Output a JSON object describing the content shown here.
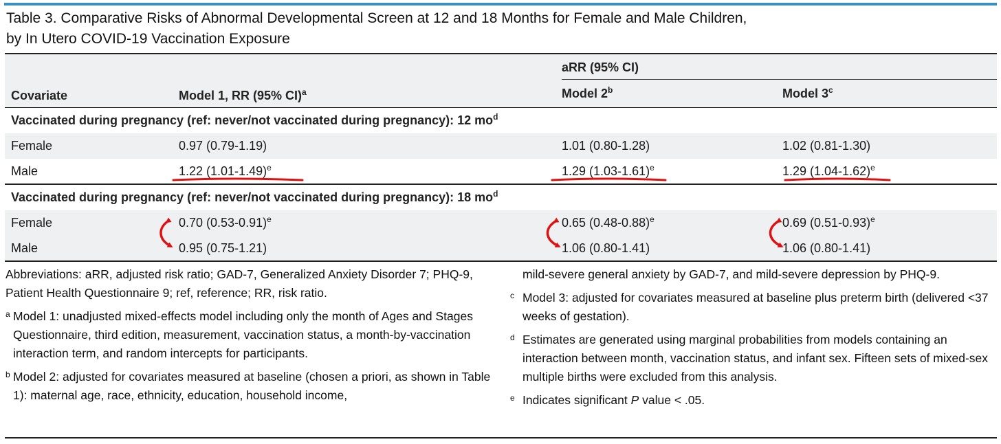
{
  "title_line1": "Table 3. Comparative Risks of Abnormal Developmental Screen at 12 and 18 Months for Female and Male Children,",
  "title_line2": "by In Utero COVID-19 Vaccination Exposure",
  "headers": {
    "covariate": "Covariate",
    "model1": "Model 1, RR (95% CI)",
    "model1_sup": "a",
    "arr_group": "aRR (95% CI)",
    "model2": "Model 2",
    "model2_sup": "b",
    "model3": "Model 3",
    "model3_sup": "c"
  },
  "sections": [
    {
      "label": "Vaccinated during pregnancy (ref: never/not vaccinated during pregnancy): 12 mo",
      "sup": "d",
      "rows": [
        {
          "covariate": "Female",
          "m1": "0.97 (0.79-1.19)",
          "m1_sup": "",
          "m2": "1.01 (0.80-1.28)",
          "m2_sup": "",
          "m3": "1.02 (0.81-1.30)",
          "m3_sup": ""
        },
        {
          "covariate": "Male",
          "m1": "1.22 (1.01-1.49)",
          "m1_sup": "e",
          "m2": "1.29 (1.03-1.61)",
          "m2_sup": "e",
          "m3": "1.29 (1.04-1.62)",
          "m3_sup": "e"
        }
      ]
    },
    {
      "label": "Vaccinated during pregnancy (ref: never/not vaccinated during pregnancy): 18 mo",
      "sup": "d",
      "rows": [
        {
          "covariate": "Female",
          "m1": "0.70 (0.53-0.91)",
          "m1_sup": "e",
          "m2": "0.65 (0.48-0.88)",
          "m2_sup": "e",
          "m3": "0.69 (0.51-0.93)",
          "m3_sup": "e"
        },
        {
          "covariate": "Male",
          "m1": "0.95 (0.75-1.21)",
          "m1_sup": "",
          "m2": "1.06 (0.80-1.41)",
          "m2_sup": "",
          "m3": "1.06 (0.80-1.41)",
          "m3_sup": ""
        }
      ]
    }
  ],
  "footnotes": {
    "abbreviations": "Abbreviations: aRR, adjusted risk ratio; GAD-7, Generalized Anxiety Disorder 7; PHQ-9, Patient Health Questionnaire 9; ref, reference; RR, risk ratio.",
    "a_mark": "a",
    "a": "Model 1: unadjusted mixed-effects model including only the month of Ages and Stages Questionnaire, third edition, measurement, vaccination status, a month-by-vaccination interaction term, and random intercepts for participants.",
    "b_mark": "b",
    "b": "Model 2: adjusted for covariates measured at baseline (chosen a priori, as shown in Table 1): maternal age, race, ethnicity, education, household income,",
    "b_cont": "mild-severe general anxiety by GAD-7, and mild-severe depression by PHQ-9.",
    "c_mark": "c",
    "c": "Model 3: adjusted for covariates measured at baseline plus preterm birth (delivered <37 weeks of gestation).",
    "d_mark": "d",
    "d": "Estimates are generated using marginal probabilities from models containing an interaction between month, vaccination status, and infant sex. Fifteen sets of mixed-sex multiple births were excluded from this analysis.",
    "e_mark": "e",
    "e_pre": "Indicates significant ",
    "e_italic": "P",
    "e_post": " value < .05."
  },
  "colors": {
    "accent_bar": "#3a8fc2",
    "header_shade": "#eef0f2",
    "annotation_red": "#e01010"
  }
}
